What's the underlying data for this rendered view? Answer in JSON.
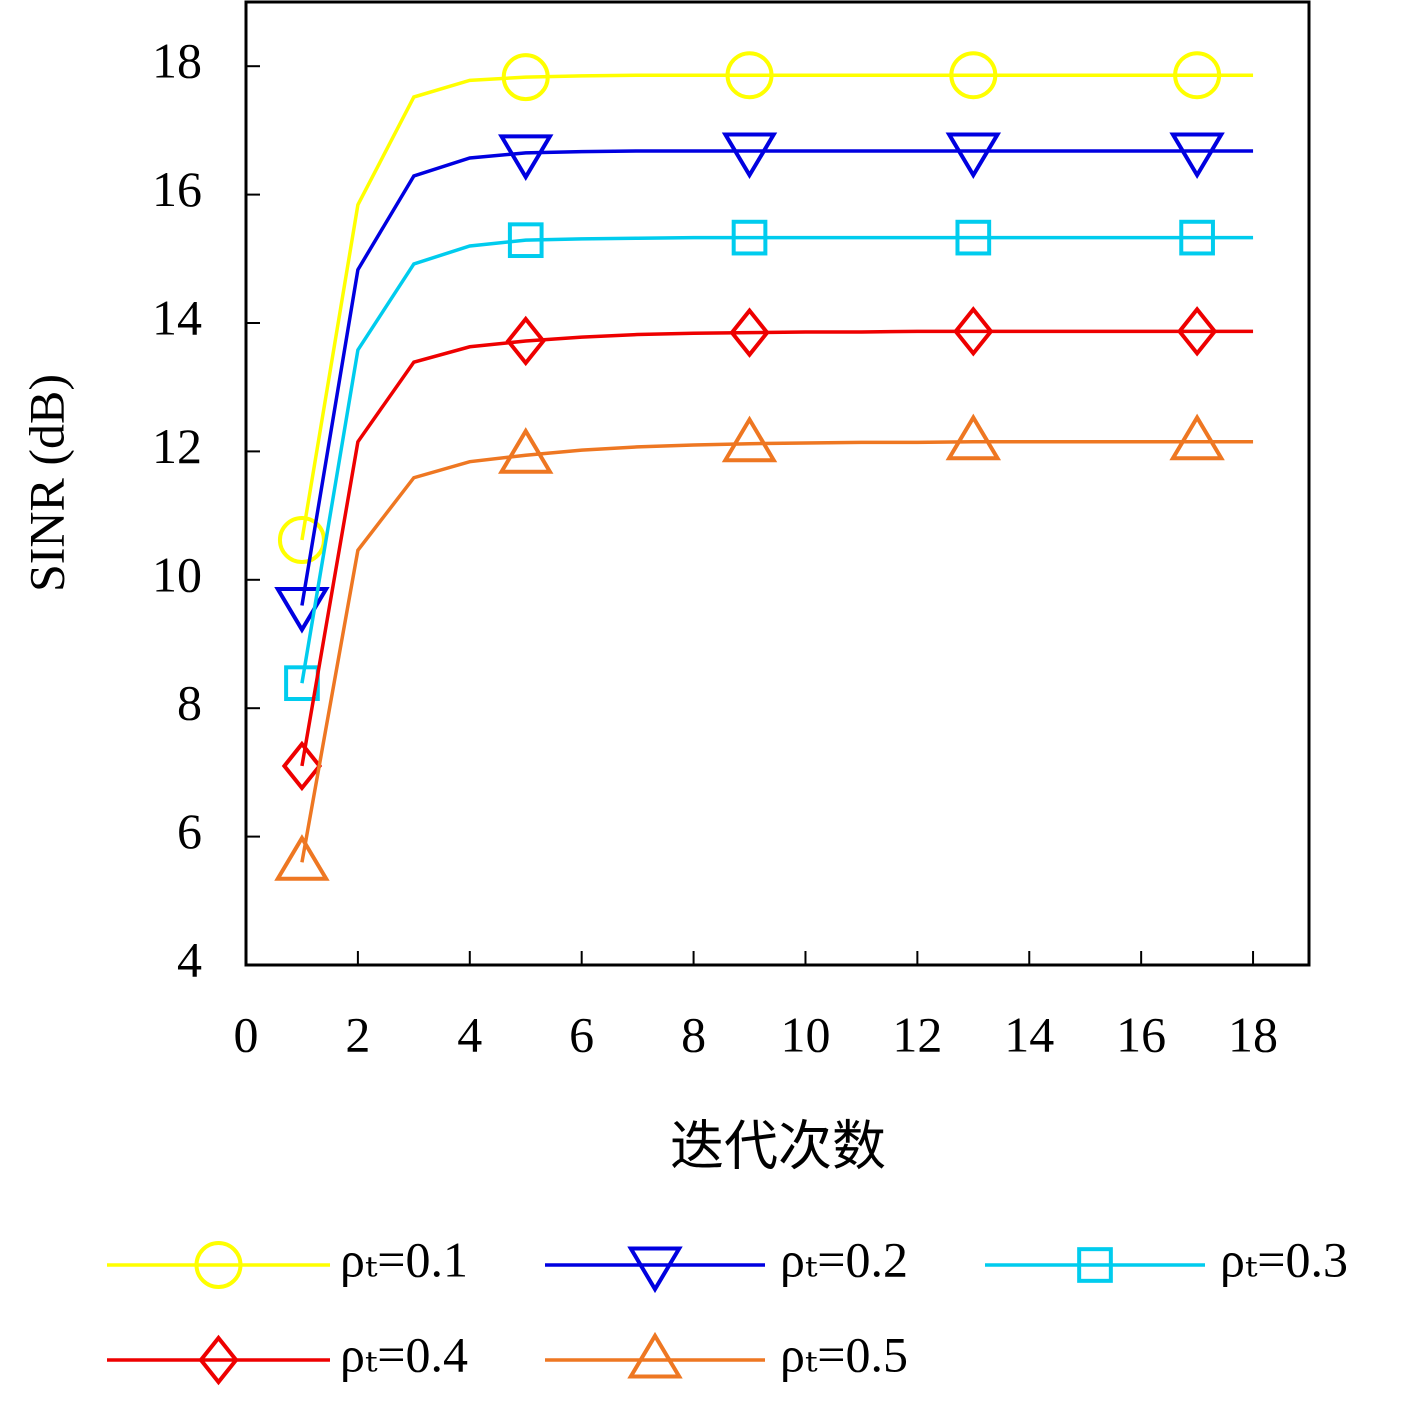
{
  "chart_data": {
    "type": "line",
    "x_label": "迭代次数",
    "y_label": "SINR (dB)",
    "x": [
      1,
      2,
      3,
      4,
      5,
      6,
      7,
      8,
      9,
      10,
      11,
      12,
      13,
      14,
      15,
      16,
      17,
      18
    ],
    "series": [
      {
        "name": "ρₜ=0.1",
        "color": "#ffff00",
        "marker": "circle",
        "values": [
          10.62,
          15.84,
          17.52,
          17.78,
          17.83,
          17.85,
          17.86,
          17.86,
          17.86,
          17.86,
          17.86,
          17.86,
          17.86,
          17.86,
          17.86,
          17.86,
          17.86,
          17.86
        ]
      },
      {
        "name": "ρₜ=0.2",
        "color": "#0000e0",
        "marker": "triangle-down",
        "values": [
          9.6,
          14.83,
          16.29,
          16.57,
          16.65,
          16.67,
          16.68,
          16.68,
          16.68,
          16.68,
          16.68,
          16.68,
          16.68,
          16.68,
          16.68,
          16.68,
          16.68,
          16.68
        ]
      },
      {
        "name": "ρₜ=0.3",
        "color": "#00ccee",
        "marker": "square",
        "values": [
          8.39,
          13.58,
          14.92,
          15.2,
          15.29,
          15.31,
          15.32,
          15.33,
          15.33,
          15.33,
          15.33,
          15.33,
          15.33,
          15.33,
          15.33,
          15.33,
          15.33,
          15.33
        ]
      },
      {
        "name": "ρₜ=0.4",
        "color": "#ee0000",
        "marker": "diamond",
        "values": [
          7.1,
          12.15,
          13.39,
          13.63,
          13.72,
          13.78,
          13.82,
          13.84,
          13.85,
          13.86,
          13.86,
          13.87,
          13.87,
          13.87,
          13.87,
          13.87,
          13.87,
          13.87
        ]
      },
      {
        "name": "ρₜ=0.5",
        "color": "#ee7722",
        "marker": "triangle-up",
        "values": [
          5.6,
          10.46,
          11.59,
          11.84,
          11.94,
          12.02,
          12.07,
          12.1,
          12.12,
          12.13,
          12.14,
          12.14,
          12.15,
          12.15,
          12.15,
          12.15,
          12.15,
          12.15
        ]
      }
    ],
    "markevery": 4,
    "xlim": [
      0,
      19
    ],
    "xticks": [
      0,
      2,
      4,
      6,
      8,
      10,
      12,
      14,
      16,
      18
    ],
    "ylim": [
      4,
      19
    ],
    "yticks": [
      4,
      6,
      8,
      10,
      12,
      14,
      16,
      18
    ],
    "grid": false,
    "legend": "bottom"
  }
}
